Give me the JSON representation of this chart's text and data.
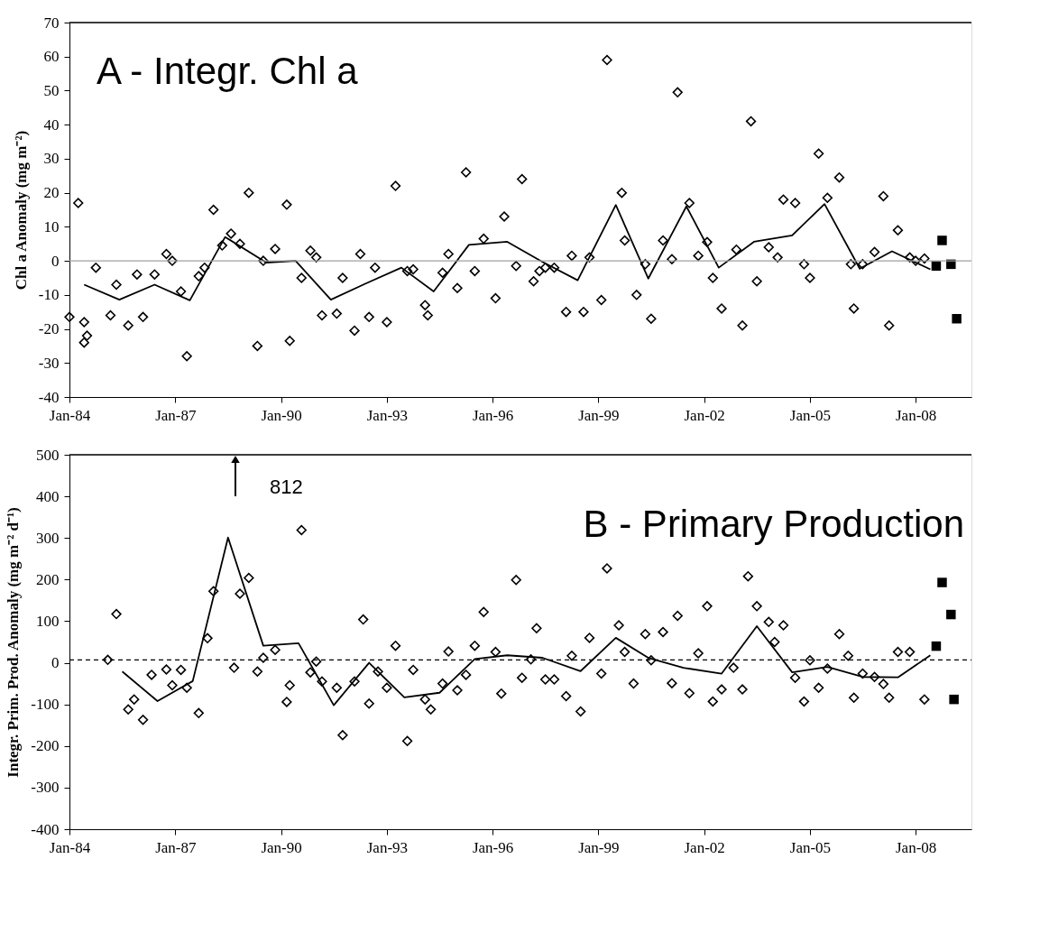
{
  "chart_data": [
    {
      "type": "scatter",
      "title": "A - Integr. Chl a",
      "ylabel": "Chl a Anomaly (mg m⁻²)",
      "xlim": [
        "1984-01",
        "2009-08"
      ],
      "xticks": [
        {
          "value": "1984-01",
          "label": "Jan-84"
        },
        {
          "value": "1987-01",
          "label": "Jan-87"
        },
        {
          "value": "1990-01",
          "label": "Jan-90"
        },
        {
          "value": "1993-01",
          "label": "Jan-93"
        },
        {
          "value": "1996-01",
          "label": "Jan-96"
        },
        {
          "value": "1999-01",
          "label": "Jan-99"
        },
        {
          "value": "2002-01",
          "label": "Jan-02"
        },
        {
          "value": "2005-01",
          "label": "Jan-05"
        },
        {
          "value": "2008-01",
          "label": "Jan-08"
        }
      ],
      "ylim": [
        -40,
        70
      ],
      "yticks": [
        -40,
        -30,
        -20,
        -10,
        0,
        10,
        20,
        30,
        40,
        50,
        60,
        70
      ],
      "ref_lines": [
        {
          "axis": "y",
          "value": 0,
          "color": "#a0a0a0",
          "line_style": "solid"
        }
      ],
      "series": [
        {
          "marker": "diamond",
          "color": "#000000",
          "x": [
            "1984-01",
            "1984-04",
            "1984-06",
            "1984-06",
            "1984-07",
            "1984-10",
            "1985-03",
            "1985-05",
            "1985-09",
            "1985-12",
            "1986-02",
            "1986-06",
            "1986-10",
            "1986-12",
            "1987-03",
            "1987-05",
            "1987-09",
            "1987-11",
            "1988-02",
            "1988-05",
            "1988-08",
            "1988-11",
            "1989-02",
            "1989-05",
            "1989-07",
            "1989-11",
            "1990-03",
            "1990-04",
            "1990-08",
            "1990-11",
            "1991-01",
            "1991-03",
            "1991-08",
            "1991-10",
            "1992-02",
            "1992-04",
            "1992-07",
            "1992-09",
            "1993-01",
            "1993-04",
            "1993-08",
            "1993-10",
            "1994-02",
            "1994-03",
            "1994-08",
            "1994-10",
            "1995-01",
            "1995-04",
            "1995-07",
            "1995-10",
            "1996-02",
            "1996-05",
            "1996-09",
            "1996-11",
            "1997-03",
            "1997-05",
            "1997-07",
            "1997-10",
            "1998-02",
            "1998-04",
            "1998-08",
            "1998-10",
            "1999-02",
            "1999-04",
            "1999-09",
            "1999-10",
            "2000-02",
            "2000-05",
            "2000-07",
            "2000-11",
            "2001-02",
            "2001-04",
            "2001-08",
            "2001-11",
            "2002-02",
            "2002-04",
            "2002-07",
            "2002-12",
            "2003-02",
            "2003-05",
            "2003-07",
            "2003-11",
            "2004-02",
            "2004-04",
            "2004-08",
            "2004-11",
            "2005-01",
            "2005-04",
            "2005-07",
            "2005-11",
            "2006-03",
            "2006-04",
            "2006-07",
            "2006-11",
            "2007-02",
            "2007-04",
            "2007-07",
            "2007-11",
            "2008-01",
            "2008-04"
          ],
          "values": [
            -16.5,
            17,
            -18,
            -24,
            -22,
            -2,
            -16,
            -7,
            -19,
            -4,
            -16.5,
            -4,
            2,
            0,
            -9,
            -28,
            -4.5,
            -2,
            15,
            4.5,
            8,
            5,
            20,
            -25,
            0,
            3.5,
            16.5,
            -23.5,
            -5,
            3,
            1,
            -16,
            -15.5,
            -5,
            -20.5,
            2,
            -16.5,
            -2,
            -18,
            22,
            -3,
            -2.5,
            -13,
            -16,
            -3.5,
            2,
            -8,
            26,
            -3,
            6.5,
            -11,
            13,
            -1.5,
            24,
            -6,
            -3,
            -2,
            -2,
            -15,
            1.5,
            -15,
            1,
            -11.5,
            59,
            20,
            6,
            -10,
            -1,
            -17,
            6,
            0.5,
            49.5,
            17,
            1.5,
            5.5,
            -5,
            -14,
            3.3,
            -19,
            41,
            -6,
            4,
            1,
            18,
            17,
            -1,
            -5,
            31.5,
            18.5,
            24.5,
            -1,
            -14,
            -1,
            2.6,
            19,
            -19,
            9,
            1,
            0,
            0.7
          ]
        },
        {
          "type": "line",
          "color": "#000000",
          "x": [
            "1984-06",
            "1985-06",
            "1986-06",
            "1987-06",
            "1988-06",
            "1989-08",
            "1990-06",
            "1991-06",
            "1992-06",
            "1993-06",
            "1994-05",
            "1995-05",
            "1996-06",
            "1997-06",
            "1998-06",
            "1999-07",
            "2000-06",
            "2001-07",
            "2002-06",
            "2003-06",
            "2004-07",
            "2005-06",
            "2006-06",
            "2007-05",
            "2008-06"
          ],
          "values": [
            -7,
            -11.4,
            -7,
            -11.6,
            7,
            -0.5,
            0,
            -11.4,
            -6.6,
            -2,
            -9,
            4.7,
            5.6,
            -0.3,
            -5.7,
            16.4,
            -5.2,
            16,
            -2,
            5.6,
            7.5,
            16.7,
            -2.3,
            2.8,
            -2.5
          ]
        },
        {
          "marker": "square",
          "color": "#000000",
          "x": [
            "2008-08",
            "2008-10",
            "2009-01",
            "2009-03"
          ],
          "values": [
            -1.5,
            6,
            -1,
            -17
          ]
        }
      ]
    },
    {
      "type": "scatter",
      "title": "B - Primary Production",
      "ylabel": "Integr. Prim. Prod. Anomaly (mg m⁻² d⁻¹)",
      "xlim": [
        "1984-01",
        "2009-08"
      ],
      "xticks": [
        {
          "value": "1984-01",
          "label": "Jan-84"
        },
        {
          "value": "1987-01",
          "label": "Jan-87"
        },
        {
          "value": "1990-01",
          "label": "Jan-90"
        },
        {
          "value": "1993-01",
          "label": "Jan-93"
        },
        {
          "value": "1996-01",
          "label": "Jan-96"
        },
        {
          "value": "1999-01",
          "label": "Jan-99"
        },
        {
          "value": "2002-01",
          "label": "Jan-02"
        },
        {
          "value": "2005-01",
          "label": "Jan-05"
        },
        {
          "value": "2008-01",
          "label": "Jan-08"
        }
      ],
      "ylim": [
        -400,
        500
      ],
      "yticks": [
        -400,
        -300,
        -200,
        -100,
        0,
        100,
        200,
        300,
        400,
        500
      ],
      "ref_lines": [
        {
          "axis": "y",
          "value": 7,
          "color": "#000000",
          "line_style": "dashed"
        }
      ],
      "annotations": [
        "812"
      ],
      "series": [
        {
          "marker": "diamond",
          "color": "#000000",
          "x": [
            "1985-02",
            "1985-05",
            "1985-09",
            "1985-11",
            "1986-02",
            "1986-05",
            "1986-10",
            "1986-12",
            "1987-03",
            "1987-05",
            "1987-09",
            "1987-12",
            "1988-02",
            "1988-09",
            "1988-11",
            "1989-02",
            "1989-05",
            "1989-07",
            "1989-11",
            "1990-03",
            "1990-04",
            "1990-08",
            "1990-11",
            "1991-01",
            "1991-03",
            "1991-08",
            "1991-10",
            "1992-02",
            "1992-05",
            "1992-07",
            "1992-10",
            "1993-01",
            "1993-04",
            "1993-08",
            "1993-10",
            "1994-02",
            "1994-04",
            "1994-08",
            "1994-10",
            "1995-01",
            "1995-04",
            "1995-07",
            "1995-10",
            "1996-02",
            "1996-04",
            "1996-09",
            "1996-11",
            "1997-02",
            "1997-04",
            "1997-07",
            "1997-10",
            "1998-02",
            "1998-04",
            "1998-07",
            "1998-10",
            "1999-02",
            "1999-04",
            "1999-08",
            "1999-10",
            "2000-01",
            "2000-05",
            "2000-07",
            "2000-11",
            "2001-02",
            "2001-04",
            "2001-08",
            "2001-11",
            "2002-02",
            "2002-04",
            "2002-07",
            "2002-11",
            "2003-02",
            "2003-04",
            "2003-07",
            "2003-11",
            "2004-01",
            "2004-04",
            "2004-08",
            "2004-11",
            "2005-01",
            "2005-04",
            "2005-07",
            "2005-11",
            "2006-02",
            "2006-04",
            "2006-07",
            "2006-11",
            "2007-02",
            "2007-04",
            "2007-07",
            "2007-11",
            "2008-04"
          ],
          "values": [
            7,
            117,
            -112,
            -88,
            -137,
            -29,
            -16,
            -54,
            -17,
            -60,
            -121,
            59,
            172,
            -12,
            166,
            204,
            -21,
            12,
            31,
            -94,
            -54,
            319,
            -23,
            3,
            -45,
            -60,
            -174,
            -45,
            104,
            -98,
            -21,
            -60,
            41,
            -188,
            -17,
            -88,
            -112,
            -50,
            27,
            -66,
            -29,
            41,
            122,
            26,
            -74,
            199,
            -36,
            8,
            83,
            -40,
            -40,
            -80,
            17,
            -117,
            60,
            -26,
            227,
            90,
            26,
            -50,
            69,
            6,
            74,
            -49,
            113,
            -73,
            23,
            136,
            -93,
            -64,
            -12,
            -64,
            208,
            136,
            98,
            50,
            90,
            -36,
            -93,
            6,
            -60,
            -14,
            69,
            17,
            -84,
            -26,
            -34,
            -51,
            -84,
            26,
            26,
            -88
          ]
        },
        {
          "type": "line",
          "color": "#000000",
          "x": [
            "1985-07",
            "1986-07",
            "1987-07",
            "1988-07",
            "1989-07",
            "1990-07",
            "1991-07",
            "1992-07",
            "1993-07",
            "1994-07",
            "1995-07",
            "1996-06",
            "1997-06",
            "1998-07",
            "1999-07",
            "2000-06",
            "2001-06",
            "2002-07",
            "2003-07",
            "2004-07",
            "2005-07",
            "2006-07",
            "2007-07",
            "2008-06"
          ],
          "values": [
            -21,
            -92,
            -44,
            301,
            41,
            47,
            -102,
            0,
            -83,
            -72,
            9,
            18,
            12,
            -20,
            60,
            12,
            -12,
            -26,
            88,
            -23,
            -10,
            -34,
            -35,
            18
          ]
        },
        {
          "marker": "square",
          "color": "#000000",
          "x": [
            "2008-08",
            "2008-10",
            "2009-01",
            "2009-02"
          ],
          "values": [
            40,
            193,
            116,
            -88
          ]
        }
      ]
    }
  ]
}
